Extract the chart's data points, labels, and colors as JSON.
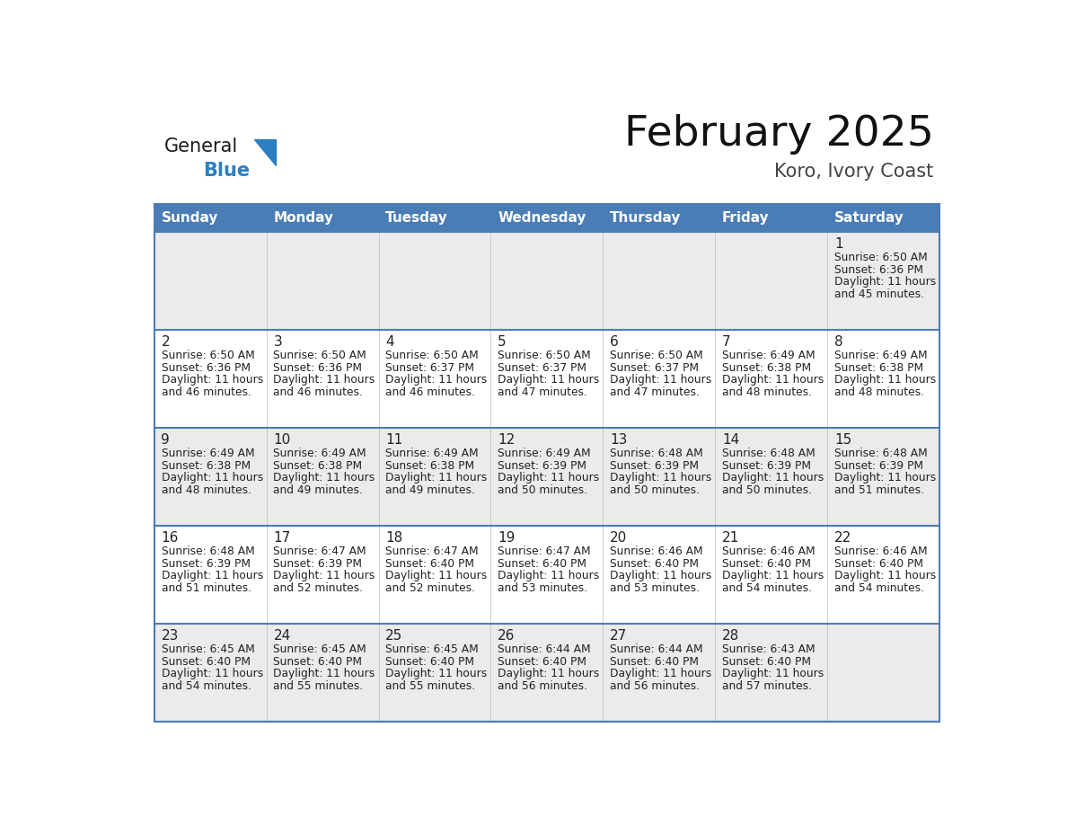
{
  "title": "February 2025",
  "subtitle": "Koro, Ivory Coast",
  "days_of_week": [
    "Sunday",
    "Monday",
    "Tuesday",
    "Wednesday",
    "Thursday",
    "Friday",
    "Saturday"
  ],
  "header_bg": "#4A7DB5",
  "header_text": "#FFFFFF",
  "row_bg_gray": "#EBEBEB",
  "row_bg_white": "#FFFFFF",
  "cell_border_color": "#4A7DB5",
  "day_number_color": "#222222",
  "info_text_color": "#222222",
  "title_color": "#111111",
  "subtitle_color": "#444444",
  "logo_general_color": "#1a1a1a",
  "logo_blue_color": "#2B7FC1",
  "calendar_data": [
    [
      null,
      null,
      null,
      null,
      null,
      null,
      {
        "day": 1,
        "sunrise": "6:50 AM",
        "sunset": "6:36 PM",
        "daylight": "11 hours and 45 minutes."
      }
    ],
    [
      {
        "day": 2,
        "sunrise": "6:50 AM",
        "sunset": "6:36 PM",
        "daylight": "11 hours and 46 minutes."
      },
      {
        "day": 3,
        "sunrise": "6:50 AM",
        "sunset": "6:36 PM",
        "daylight": "11 hours and 46 minutes."
      },
      {
        "day": 4,
        "sunrise": "6:50 AM",
        "sunset": "6:37 PM",
        "daylight": "11 hours and 46 minutes."
      },
      {
        "day": 5,
        "sunrise": "6:50 AM",
        "sunset": "6:37 PM",
        "daylight": "11 hours and 47 minutes."
      },
      {
        "day": 6,
        "sunrise": "6:50 AM",
        "sunset": "6:37 PM",
        "daylight": "11 hours and 47 minutes."
      },
      {
        "day": 7,
        "sunrise": "6:49 AM",
        "sunset": "6:38 PM",
        "daylight": "11 hours and 48 minutes."
      },
      {
        "day": 8,
        "sunrise": "6:49 AM",
        "sunset": "6:38 PM",
        "daylight": "11 hours and 48 minutes."
      }
    ],
    [
      {
        "day": 9,
        "sunrise": "6:49 AM",
        "sunset": "6:38 PM",
        "daylight": "11 hours and 48 minutes."
      },
      {
        "day": 10,
        "sunrise": "6:49 AM",
        "sunset": "6:38 PM",
        "daylight": "11 hours and 49 minutes."
      },
      {
        "day": 11,
        "sunrise": "6:49 AM",
        "sunset": "6:38 PM",
        "daylight": "11 hours and 49 minutes."
      },
      {
        "day": 12,
        "sunrise": "6:49 AM",
        "sunset": "6:39 PM",
        "daylight": "11 hours and 50 minutes."
      },
      {
        "day": 13,
        "sunrise": "6:48 AM",
        "sunset": "6:39 PM",
        "daylight": "11 hours and 50 minutes."
      },
      {
        "day": 14,
        "sunrise": "6:48 AM",
        "sunset": "6:39 PM",
        "daylight": "11 hours and 50 minutes."
      },
      {
        "day": 15,
        "sunrise": "6:48 AM",
        "sunset": "6:39 PM",
        "daylight": "11 hours and 51 minutes."
      }
    ],
    [
      {
        "day": 16,
        "sunrise": "6:48 AM",
        "sunset": "6:39 PM",
        "daylight": "11 hours and 51 minutes."
      },
      {
        "day": 17,
        "sunrise": "6:47 AM",
        "sunset": "6:39 PM",
        "daylight": "11 hours and 52 minutes."
      },
      {
        "day": 18,
        "sunrise": "6:47 AM",
        "sunset": "6:40 PM",
        "daylight": "11 hours and 52 minutes."
      },
      {
        "day": 19,
        "sunrise": "6:47 AM",
        "sunset": "6:40 PM",
        "daylight": "11 hours and 53 minutes."
      },
      {
        "day": 20,
        "sunrise": "6:46 AM",
        "sunset": "6:40 PM",
        "daylight": "11 hours and 53 minutes."
      },
      {
        "day": 21,
        "sunrise": "6:46 AM",
        "sunset": "6:40 PM",
        "daylight": "11 hours and 54 minutes."
      },
      {
        "day": 22,
        "sunrise": "6:46 AM",
        "sunset": "6:40 PM",
        "daylight": "11 hours and 54 minutes."
      }
    ],
    [
      {
        "day": 23,
        "sunrise": "6:45 AM",
        "sunset": "6:40 PM",
        "daylight": "11 hours and 54 minutes."
      },
      {
        "day": 24,
        "sunrise": "6:45 AM",
        "sunset": "6:40 PM",
        "daylight": "11 hours and 55 minutes."
      },
      {
        "day": 25,
        "sunrise": "6:45 AM",
        "sunset": "6:40 PM",
        "daylight": "11 hours and 55 minutes."
      },
      {
        "day": 26,
        "sunrise": "6:44 AM",
        "sunset": "6:40 PM",
        "daylight": "11 hours and 56 minutes."
      },
      {
        "day": 27,
        "sunrise": "6:44 AM",
        "sunset": "6:40 PM",
        "daylight": "11 hours and 56 minutes."
      },
      {
        "day": 28,
        "sunrise": "6:43 AM",
        "sunset": "6:40 PM",
        "daylight": "11 hours and 57 minutes."
      },
      null
    ]
  ],
  "row_colors": [
    "#EBEBEB",
    "#FFFFFF",
    "#EBEBEB",
    "#FFFFFF",
    "#EBEBEB"
  ]
}
